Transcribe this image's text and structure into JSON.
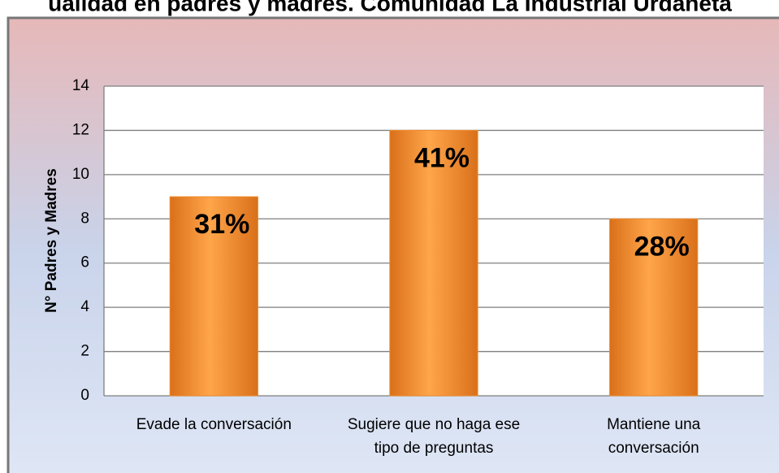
{
  "chart_data": {
    "type": "bar",
    "title": "ualidad en padres y madres. Comunidad La Industrial Urdaneta",
    "y_label": "N° Padres y Madres",
    "categories": [
      [
        "Evade la conversación"
      ],
      [
        "Sugiere que no haga ese",
        "tipo de preguntas"
      ],
      [
        "Mantiene una",
        "conversación"
      ]
    ],
    "values": [
      9,
      12,
      8
    ],
    "value_labels": [
      "31%",
      "41%",
      "28%"
    ],
    "color": "#f08a2a",
    "ylim": [
      0,
      14
    ],
    "yticks": [
      0,
      2,
      4,
      6,
      8,
      10,
      12,
      14
    ],
    "grid": true
  }
}
